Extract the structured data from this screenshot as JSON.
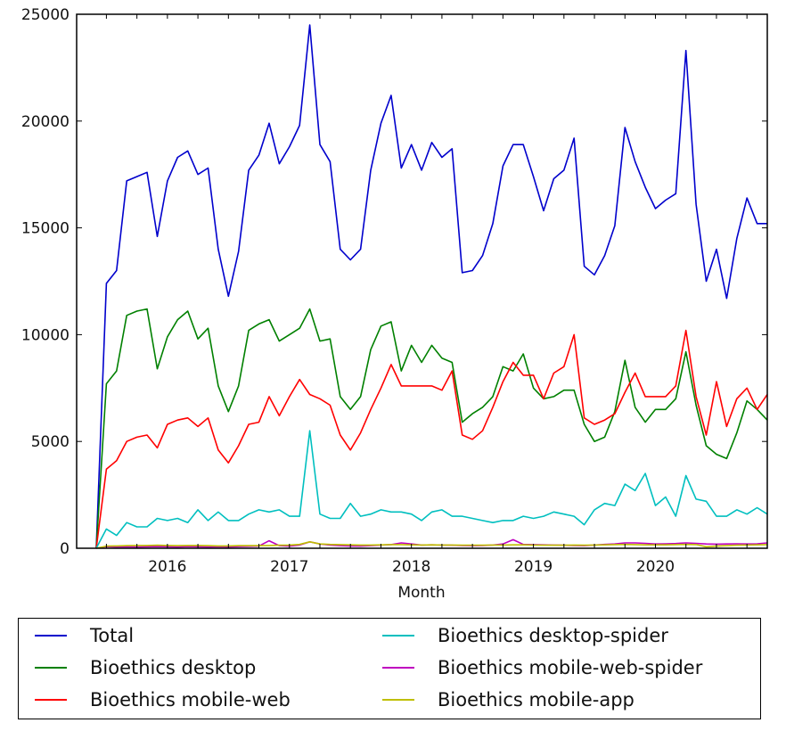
{
  "chart_data": {
    "type": "line",
    "title": "",
    "xlabel": "Month",
    "ylabel": "",
    "ylim": [
      0,
      25000
    ],
    "yticks": [
      "0",
      "5000",
      "10000",
      "15000",
      "20000",
      "25000"
    ],
    "xticks": [
      "2016",
      "2017",
      "2018",
      "2019",
      "2020"
    ],
    "x_start": "2015-06",
    "x_end": "2020-12",
    "grid": false,
    "legend_position": "below",
    "series": [
      {
        "name": "Total",
        "color": "#0000cc",
        "values": [
          0,
          12400,
          13000,
          17200,
          17400,
          17600,
          14600,
          17200,
          18300,
          18600,
          17500,
          17800,
          14000,
          11800,
          13900,
          17700,
          18400,
          19900,
          18000,
          18800,
          19800,
          24500,
          18900,
          18100,
          14000,
          13500,
          14000,
          17700,
          19900,
          21200,
          17800,
          18900,
          17700,
          19000,
          18300,
          18700,
          12900,
          13000,
          13700,
          15200,
          17900,
          18900,
          18900,
          17400,
          15800,
          17300,
          17700,
          19200,
          13200,
          12800,
          13700,
          15100,
          19700,
          18100,
          16900,
          15900,
          16300,
          16600,
          23300,
          16100,
          12500,
          14000,
          11700,
          14500,
          16400,
          15200,
          15200
        ]
      },
      {
        "name": "Bioethics desktop",
        "color": "#008000",
        "values": [
          0,
          7700,
          8300,
          10900,
          11100,
          11200,
          8400,
          9900,
          10700,
          11100,
          9800,
          10300,
          7600,
          6400,
          7600,
          10200,
          10500,
          10700,
          9700,
          10000,
          10300,
          11200,
          9700,
          9800,
          7100,
          6500,
          7100,
          9300,
          10400,
          10600,
          8300,
          9500,
          8700,
          9500,
          8900,
          8700,
          5900,
          6300,
          6600,
          7100,
          8500,
          8300,
          9100,
          7500,
          7000,
          7100,
          7400,
          7400,
          5800,
          5000,
          5200,
          6400,
          8800,
          6600,
          5900,
          6500,
          6500,
          7000,
          9200,
          6700,
          4800,
          4400,
          4200,
          5400,
          6900,
          6500,
          6000
        ]
      },
      {
        "name": "Bioethics mobile-web",
        "color": "#ff0000",
        "values": [
          0,
          3700,
          4100,
          5000,
          5200,
          5300,
          4700,
          5800,
          6000,
          6100,
          5700,
          6100,
          4600,
          4000,
          4800,
          5800,
          5900,
          7100,
          6200,
          7100,
          7900,
          7200,
          7000,
          6700,
          5300,
          4600,
          5400,
          6500,
          7500,
          8600,
          7600,
          7600,
          7600,
          7600,
          7400,
          8300,
          5300,
          5100,
          5500,
          6600,
          7800,
          8700,
          8100,
          8100,
          7000,
          8200,
          8500,
          10000,
          6100,
          5800,
          6000,
          6300,
          7300,
          8200,
          7100,
          7100,
          7100,
          7600,
          10200,
          7100,
          5300,
          7800,
          5700,
          7000,
          7500,
          6500,
          7200
        ]
      },
      {
        "name": "Bioethics desktop-spider",
        "color": "#00bfbf",
        "values": [
          0,
          900,
          600,
          1200,
          1000,
          1000,
          1400,
          1300,
          1400,
          1200,
          1800,
          1300,
          1700,
          1300,
          1300,
          1600,
          1800,
          1700,
          1800,
          1500,
          1500,
          5500,
          1600,
          1400,
          1400,
          2100,
          1500,
          1600,
          1800,
          1700,
          1700,
          1600,
          1300,
          1700,
          1800,
          1500,
          1500,
          1400,
          1300,
          1200,
          1300,
          1300,
          1500,
          1400,
          1500,
          1700,
          1600,
          1500,
          1100,
          1800,
          2100,
          2000,
          3000,
          2700,
          3500,
          2000,
          2400,
          1500,
          3400,
          2300,
          2200,
          1500,
          1500,
          1800,
          1600,
          1900,
          1600
        ]
      },
      {
        "name": "Bioethics mobile-web-spider",
        "color": "#bf00bf",
        "values": [
          0,
          80,
          60,
          70,
          60,
          70,
          80,
          70,
          60,
          80,
          70,
          60,
          70,
          60,
          80,
          90,
          100,
          350,
          120,
          100,
          150,
          300,
          200,
          150,
          120,
          110,
          100,
          120,
          150,
          170,
          250,
          200,
          150,
          160,
          150,
          140,
          130,
          120,
          130,
          150,
          200,
          400,
          180,
          170,
          160,
          150,
          140,
          130,
          120,
          150,
          180,
          200,
          250,
          250,
          230,
          200,
          210,
          220,
          250,
          230,
          200,
          190,
          200,
          210,
          200,
          210,
          250
        ]
      },
      {
        "name": "Bioethics mobile-app",
        "color": "#bfbf00",
        "values": [
          0,
          100,
          110,
          120,
          130,
          130,
          140,
          130,
          120,
          130,
          130,
          120,
          110,
          110,
          120,
          120,
          120,
          130,
          140,
          150,
          180,
          300,
          200,
          180,
          170,
          160,
          150,
          150,
          160,
          170,
          170,
          160,
          150,
          160,
          150,
          150,
          140,
          140,
          140,
          150,
          150,
          160,
          160,
          150,
          140,
          140,
          140,
          150,
          140,
          150,
          160,
          170,
          180,
          170,
          160,
          160,
          160,
          170,
          180,
          170,
          70,
          100,
          120,
          140,
          150,
          160,
          170
        ]
      }
    ]
  }
}
